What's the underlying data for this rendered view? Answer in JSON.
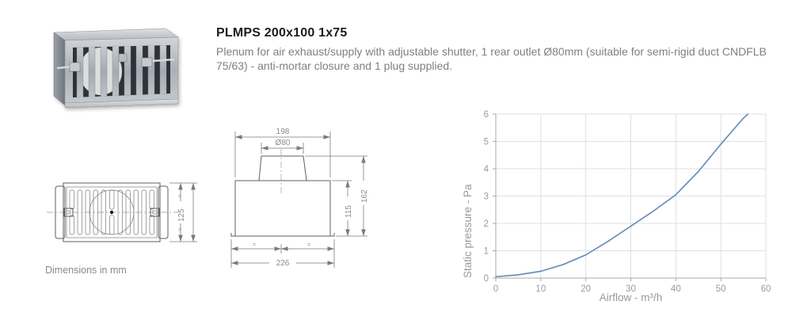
{
  "product": {
    "title": "PLMPS 200x100 1x75",
    "description": "Plenum for air exhaust/supply with adjustable shutter, 1 rear outlet Ø80mm (suitable for semi-rigid duct CNDFLB 75/63) - anti-mortar closure and 1 plug supplied."
  },
  "drawings": {
    "note": "Dimensions in mm",
    "equal_mark": "=",
    "front_view": {
      "height": "125"
    },
    "side_view": {
      "top_width": "198",
      "outlet_diameter": "Ø80",
      "total_height": "162",
      "body_height": "115",
      "bottom_width": "226"
    }
  },
  "chart_data": {
    "type": "line",
    "title": "",
    "xlabel": "Airflow - m³/h",
    "ylabel": "Static pressure - Pa",
    "xlim": [
      0,
      60
    ],
    "ylim": [
      0,
      6
    ],
    "x_ticks": [
      0,
      10,
      20,
      30,
      40,
      50,
      60
    ],
    "y_ticks": [
      0,
      1,
      2,
      3,
      4,
      5,
      6
    ],
    "grid": true,
    "legend": "none",
    "line_color": "#6b8fb5",
    "grid_color": "#dcdfe2",
    "axis_color": "#aaaaaa",
    "series": [
      {
        "name": "static-pressure-curve",
        "x": [
          0,
          5,
          10,
          15,
          20,
          25,
          30,
          35,
          40,
          45,
          50,
          55,
          56
        ],
        "y": [
          0.05,
          0.12,
          0.25,
          0.5,
          0.85,
          1.35,
          1.9,
          2.45,
          3.05,
          3.9,
          4.9,
          5.85,
          6.0
        ]
      }
    ]
  }
}
